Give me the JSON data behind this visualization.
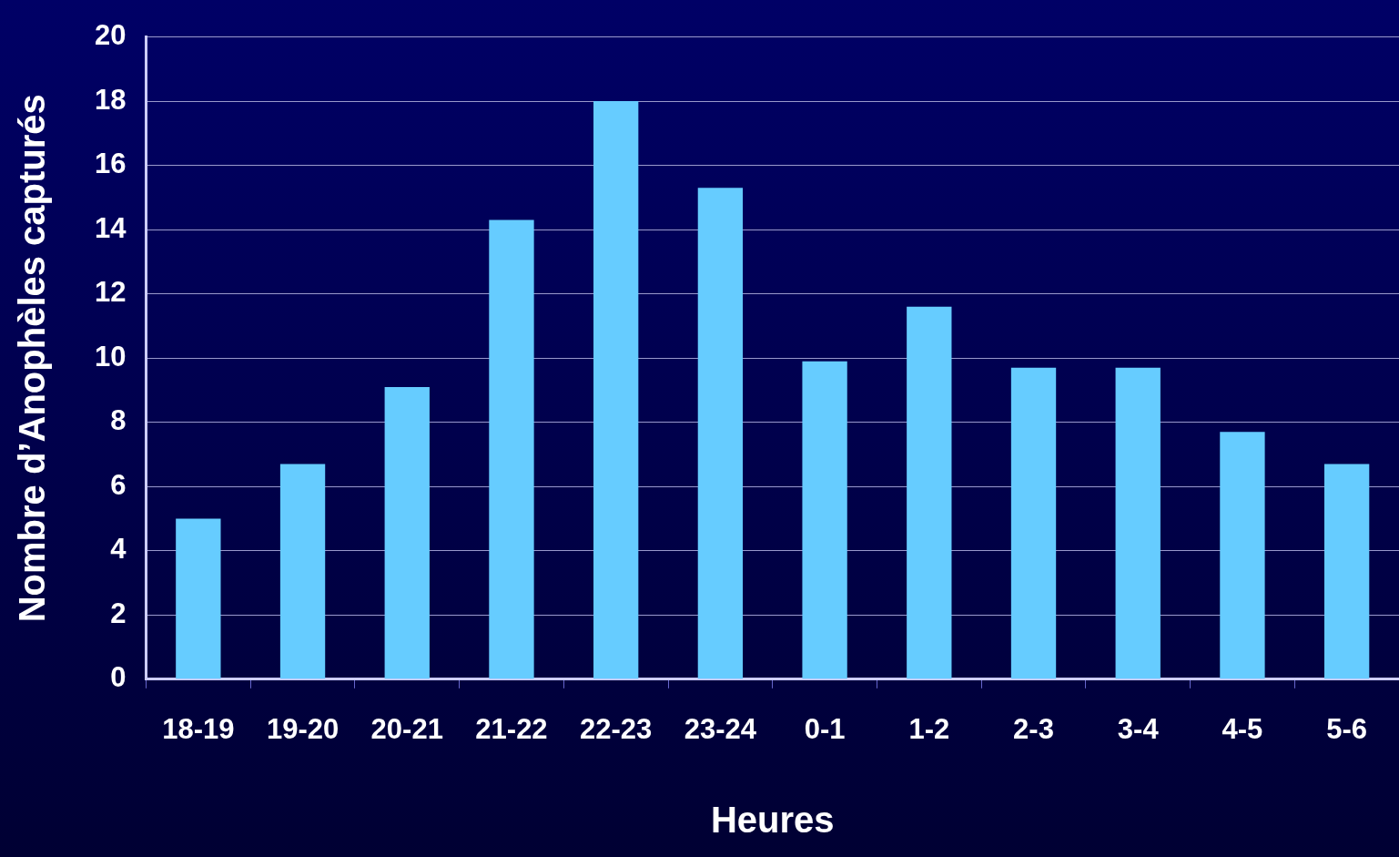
{
  "chart_data": {
    "type": "bar",
    "xlabel": "Heures",
    "ylabel": "Nombre d’Anophèles capturés",
    "categories": [
      "18-19",
      "19-20",
      "20-21",
      "21-22",
      "22-23",
      "23-24",
      "0-1",
      "1-2",
      "2-3",
      "3-4",
      "4-5",
      "5-6"
    ],
    "values": [
      5,
      6.7,
      9.1,
      14.3,
      18,
      15.3,
      9.9,
      11.6,
      9.7,
      9.7,
      7.7,
      6.7
    ],
    "color": "#66ccff",
    "ylim": [
      0,
      20
    ],
    "yticks": [
      0,
      2,
      4,
      6,
      8,
      10,
      12,
      14,
      16,
      18,
      20
    ],
    "grid": "y",
    "legend": false
  }
}
